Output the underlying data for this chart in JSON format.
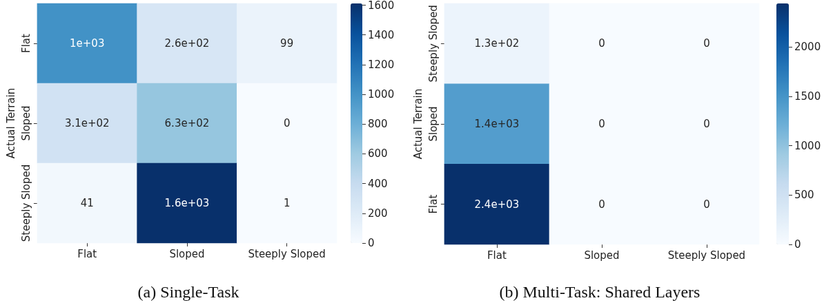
{
  "chart_data": [
    {
      "type": "heatmap",
      "title": "(a) Single-Task",
      "ylabel": "Actual Terrain",
      "categories": [
        "Flat",
        "Sloped",
        "Steeply Sloped"
      ],
      "y_categories": [
        "Flat",
        "Sloped",
        "Steeply Sloped"
      ],
      "cells": [
        [
          1000,
          260,
          99
        ],
        [
          310,
          630,
          0
        ],
        [
          41,
          1600,
          1
        ]
      ],
      "cell_labels": [
        [
          "1e+03",
          "2.6e+02",
          "99"
        ],
        [
          "3.1e+02",
          "6.3e+02",
          "0"
        ],
        [
          "41",
          "1.6e+03",
          "1"
        ]
      ],
      "clim": [
        0,
        1600
      ],
      "cticks": [
        0,
        200,
        400,
        600,
        800,
        1000,
        1200,
        1400,
        1600
      ]
    },
    {
      "type": "heatmap",
      "title": "(b) Multi-Task: Shared Layers",
      "ylabel": "Actual Terrain",
      "categories": [
        "Flat",
        "Sloped",
        "Steeply Sloped"
      ],
      "y_categories": [
        "Steeply Sloped",
        "Sloped",
        "Flat"
      ],
      "cells": [
        [
          130,
          0,
          0
        ],
        [
          1400,
          0,
          0
        ],
        [
          2440,
          0,
          0
        ]
      ],
      "cell_labels": [
        [
          "1.3e+02",
          "0",
          "0"
        ],
        [
          "1.4e+03",
          "0",
          "0"
        ],
        [
          "2.4e+03",
          "0",
          "0"
        ]
      ],
      "clim": [
        0,
        2440
      ],
      "cticks": [
        0,
        500,
        1000,
        1500,
        2000
      ]
    }
  ]
}
